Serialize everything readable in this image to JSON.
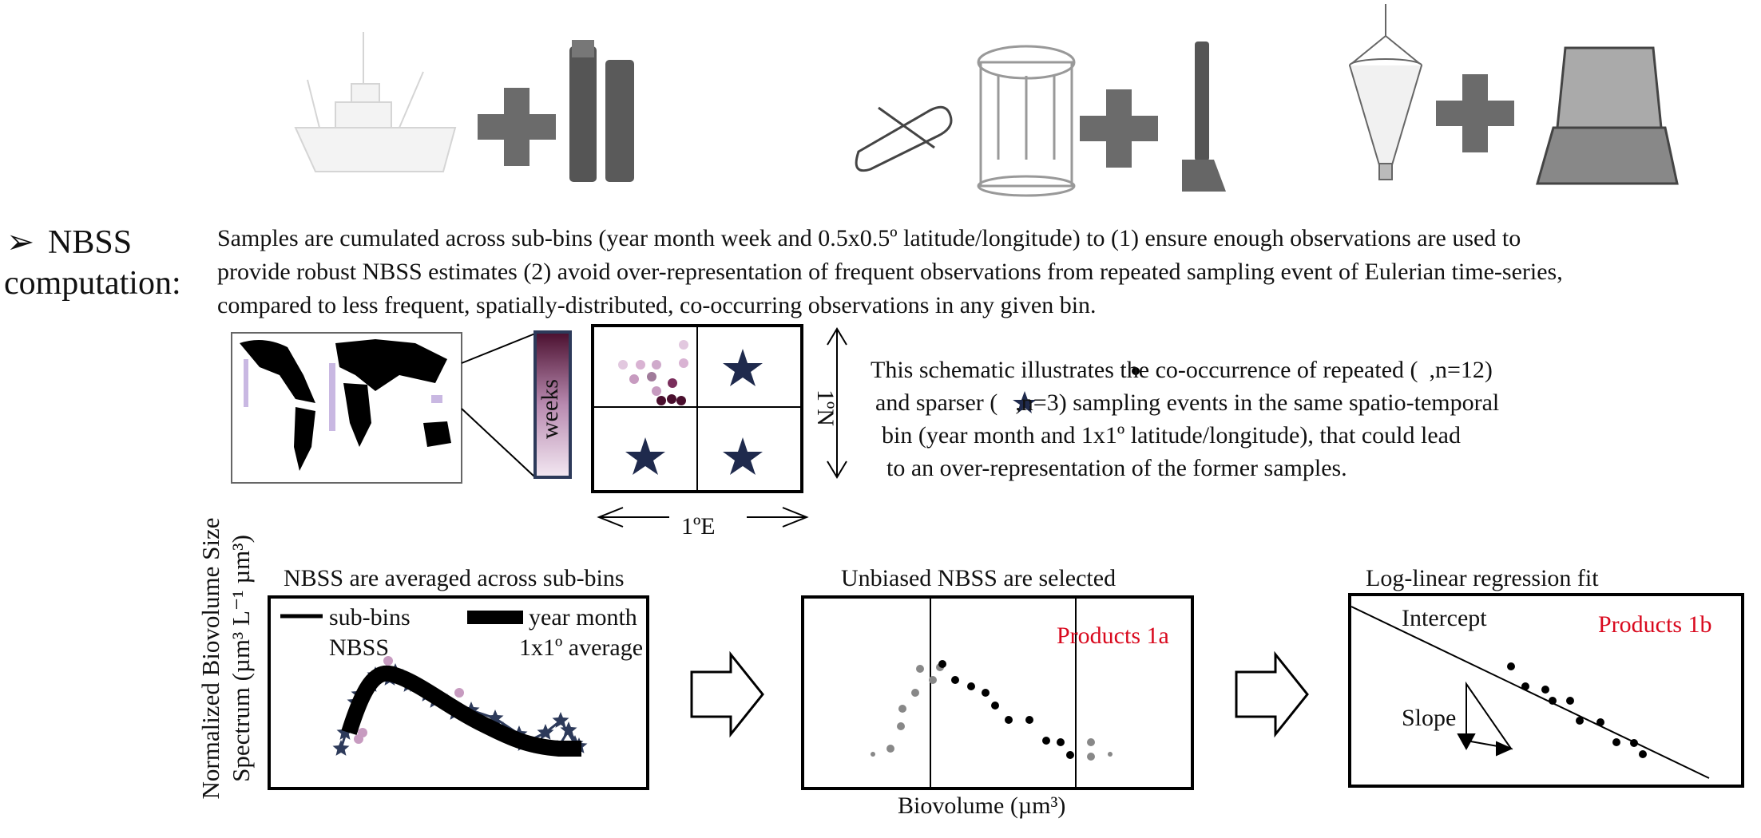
{
  "instruments": {
    "group1": {
      "ship": "ship-icon",
      "instrument": "uvp-profiler-icon"
    },
    "group2": {
      "glider": "glider-icon",
      "rosette": "ctd-rosette-icon",
      "instrument": "imaging-profiler-icon"
    },
    "group3": {
      "net": "plankton-net-icon",
      "instrument": "scanner-icon"
    }
  },
  "section": {
    "bullet": "➢",
    "title_line1": "NBSS",
    "title_line2": "computation:",
    "paragraph": [
      "Samples are cumulated across sub-bins (year month week and 0.5x0.5º latitude/longitude) to (1) ensure enough observations are used to",
      "provide robust NBSS estimates (2) avoid over-representation of frequent observations from repeated sampling event of Eulerian time-series,",
      "compared to less frequent, spatially-distributed, co-occurring observations in any given bin."
    ]
  },
  "schematic": {
    "weeks_label": "weeks",
    "lon_label": "1ºE",
    "lat_label": "1ºN",
    "note": [
      "This schematic illustrates the co-occurrence of repeated (",
      ",n=12)",
      "and sparser (",
      ",n=3) sampling events in the same spatio-temporal",
      "bin (year month and 1x1º latitude/longitude), that could lead",
      "to an over-representation of the former samples."
    ],
    "colors": {
      "dot_dark": "#4a0f2e",
      "dot_light": "#d9b3d3",
      "star": "#1f2a4d",
      "weeks_top": "#4a0f2e",
      "weeks_bottom": "#f3e8f2"
    }
  },
  "panels": {
    "y_axis_label_line1": "Normalized Biovolume Size",
    "y_axis_label_line2": "Spectrum (µm³ L⁻¹ µm³)",
    "x_axis_label": "Biovolume (µm³)",
    "panel1": {
      "title": "NBSS are averaged across sub-bins",
      "legend_sub_bins_1": "sub-bins",
      "legend_sub_bins_2": "NBSS",
      "legend_avg_1": "year month",
      "legend_avg_2": "1x1º average"
    },
    "panel2": {
      "title": "Unbiased NBSS are selected",
      "product": "Products 1a"
    },
    "panel3": {
      "title": "Log-linear regression fit",
      "product": "Products 1b",
      "intercept": "Intercept",
      "slope": "Slope"
    }
  }
}
